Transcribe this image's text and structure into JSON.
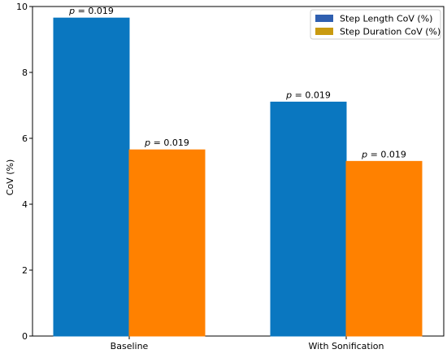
{
  "chart_data": {
    "type": "bar",
    "categories": [
      "Baseline",
      "With Sonification"
    ],
    "series": [
      {
        "name": "Step Length CoV (%)",
        "values": [
          9.65,
          7.1
        ],
        "annotations": [
          "p = 0.019",
          "p = 0.019"
        ],
        "color": "#0a77c0"
      },
      {
        "name": "Step Duration CoV (%)",
        "values": [
          5.65,
          5.3
        ],
        "annotations": [
          "p = 0.019",
          "p = 0.019"
        ],
        "color": "#ff8100"
      }
    ],
    "ylabel": "CoV (%)",
    "xlabel": "",
    "title": "",
    "ylim": [
      0,
      10
    ],
    "yticks": [
      0,
      2,
      4,
      6,
      8,
      10
    ],
    "grid": false,
    "legend_position": "top-right",
    "legend_colors": [
      "#2f5fb0",
      "#c99a10"
    ]
  }
}
